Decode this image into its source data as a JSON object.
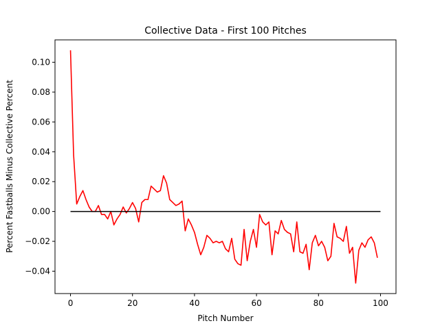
{
  "chart_data": {
    "type": "line",
    "title": "Collective Data - First 100 Pitches",
    "xlabel": "Pitch Number",
    "ylabel": "Percent Fastballs Minus Collective Percent",
    "xlim": [
      -5,
      105
    ],
    "ylim": [
      -0.055,
      0.115
    ],
    "xticks": [
      0,
      20,
      40,
      60,
      80,
      100
    ],
    "yticks": [
      -0.04,
      -0.02,
      0.0,
      0.02,
      0.04,
      0.06,
      0.08,
      0.1
    ],
    "ytick_labels": [
      "−0.04",
      "−0.02",
      "0.00",
      "0.02",
      "0.04",
      "0.06",
      "0.08",
      "0.10"
    ],
    "grid": false,
    "series": [
      {
        "color": "#ff0000",
        "x": [
          0,
          1,
          2,
          3,
          4,
          5,
          6,
          7,
          8,
          9,
          10,
          11,
          12,
          13,
          14,
          15,
          16,
          17,
          18,
          19,
          20,
          21,
          22,
          23,
          24,
          25,
          26,
          27,
          28,
          29,
          30,
          31,
          32,
          33,
          34,
          35,
          36,
          37,
          38,
          39,
          40,
          41,
          42,
          43,
          44,
          45,
          46,
          47,
          48,
          49,
          50,
          51,
          52,
          53,
          54,
          55,
          56,
          57,
          58,
          59,
          60,
          61,
          62,
          63,
          64,
          65,
          66,
          67,
          68,
          69,
          70,
          71,
          72,
          73,
          74,
          75,
          76,
          77,
          78,
          79,
          80,
          81,
          82,
          83,
          84,
          85,
          86,
          87,
          88,
          89,
          90,
          91,
          92,
          93,
          94,
          95,
          96,
          97,
          98,
          99
        ],
        "y": [
          0.108,
          0.038,
          0.005,
          0.01,
          0.014,
          0.008,
          0.003,
          0.0,
          0.0,
          0.004,
          -0.002,
          -0.002,
          -0.005,
          0.0,
          -0.009,
          -0.005,
          -0.002,
          0.003,
          -0.001,
          0.002,
          0.006,
          0.002,
          -0.007,
          0.006,
          0.008,
          0.008,
          0.017,
          0.015,
          0.013,
          0.014,
          0.024,
          0.019,
          0.008,
          0.006,
          0.004,
          0.005,
          0.007,
          -0.013,
          -0.005,
          -0.009,
          -0.014,
          -0.022,
          -0.029,
          -0.024,
          -0.016,
          -0.018,
          -0.021,
          -0.02,
          -0.021,
          -0.02,
          -0.025,
          -0.027,
          -0.018,
          -0.032,
          -0.035,
          -0.036,
          -0.012,
          -0.033,
          -0.02,
          -0.012,
          -0.024,
          -0.002,
          -0.007,
          -0.009,
          -0.007,
          -0.029,
          -0.013,
          -0.015,
          -0.006,
          -0.012,
          -0.014,
          -0.015,
          -0.027,
          -0.007,
          -0.027,
          -0.028,
          -0.022,
          -0.039,
          -0.021,
          -0.016,
          -0.023,
          -0.02,
          -0.024,
          -0.033,
          -0.03,
          -0.008,
          -0.017,
          -0.018,
          -0.02,
          -0.01,
          -0.028,
          -0.024,
          -0.048,
          -0.026,
          -0.021,
          -0.024,
          -0.019,
          -0.017,
          -0.021,
          -0.031
        ]
      },
      {
        "color": "#000000",
        "x": [
          0,
          100
        ],
        "y": [
          0,
          0
        ]
      }
    ]
  }
}
